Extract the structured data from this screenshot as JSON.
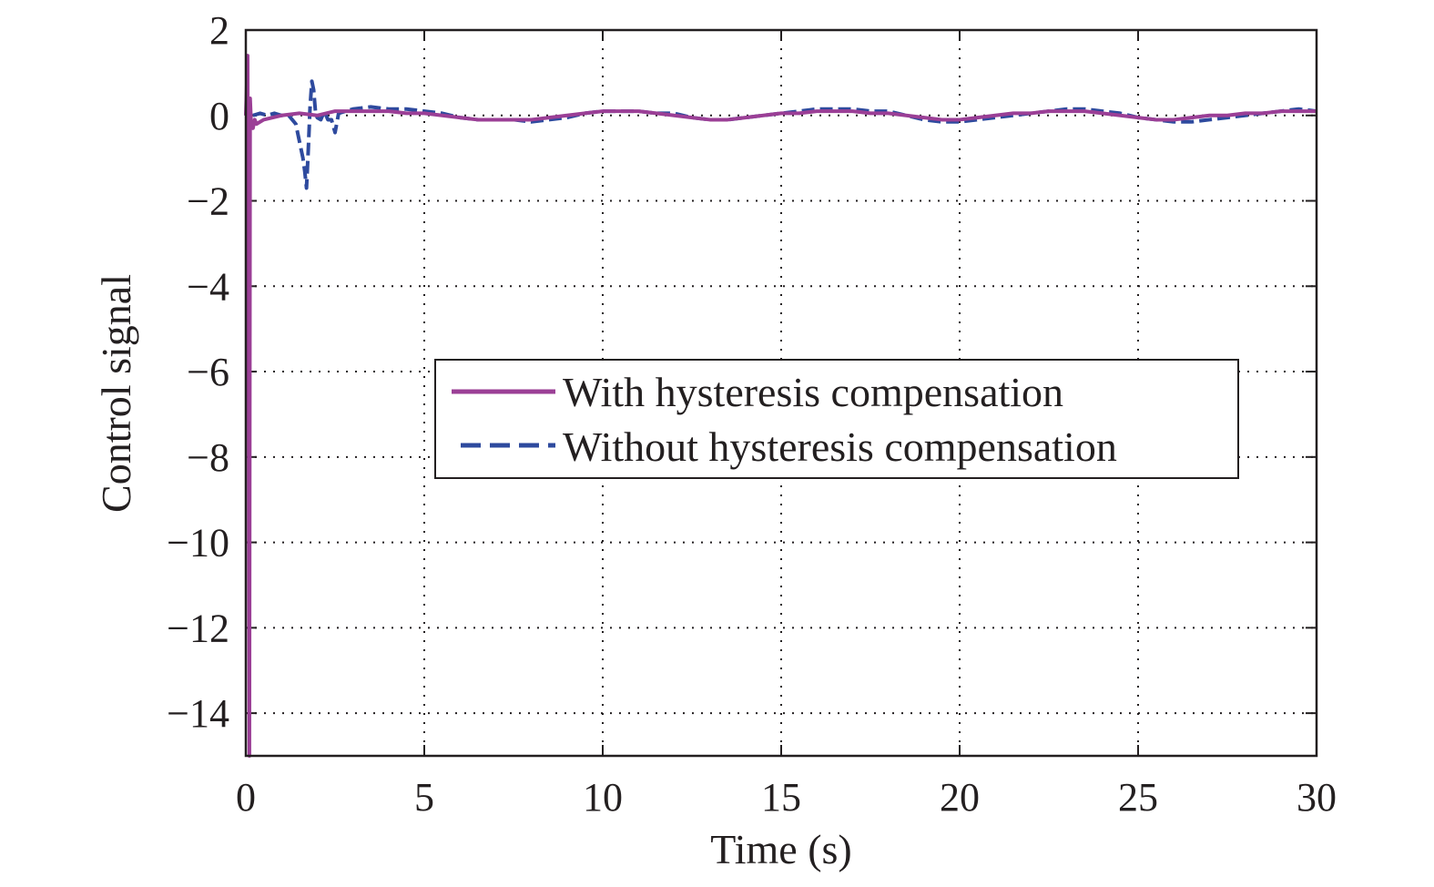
{
  "chart_data": {
    "type": "line",
    "title": "",
    "xlabel": "Time (s)",
    "ylabel": "Control signal",
    "xlim": [
      0,
      30
    ],
    "ylim": [
      -15,
      2
    ],
    "xticks": [
      0,
      5,
      10,
      15,
      20,
      25,
      30
    ],
    "xtick_labels": [
      "0",
      "5",
      "10",
      "15",
      "20",
      "25",
      "30"
    ],
    "yticks": [
      2,
      0,
      -2,
      -4,
      -6,
      -8,
      -10,
      -12,
      -14
    ],
    "ytick_labels": [
      "2",
      "0",
      "−2",
      "−4",
      "−6",
      "−8",
      "−10",
      "−12",
      "−14"
    ],
    "grid": true,
    "grid_style": "dotted",
    "legend_position": "center-right",
    "series": [
      {
        "name": "With hysteresis compensation",
        "color": "#9b3f96",
        "line_style": "solid",
        "x": [
          0,
          0.05,
          0.08,
          0.1,
          0.12,
          0.15,
          0.2,
          0.25,
          0.3,
          0.5,
          1.0,
          1.5,
          2.0,
          2.5,
          3.0,
          3.5,
          4.0,
          4.5,
          5.0,
          5.5,
          6.0,
          6.5,
          7.0,
          7.5,
          8.0,
          8.5,
          9.0,
          9.5,
          10.0,
          10.5,
          11.0,
          11.5,
          12.0,
          12.5,
          13.0,
          13.5,
          14.0,
          14.5,
          15.0,
          15.5,
          16.0,
          16.5,
          17.0,
          17.5,
          18.0,
          18.5,
          19.0,
          19.5,
          20.0,
          20.5,
          21.0,
          21.5,
          22.0,
          22.5,
          23.0,
          23.5,
          24.0,
          24.5,
          25.0,
          25.5,
          26.0,
          26.5,
          27.0,
          27.5,
          28.0,
          28.5,
          29.0,
          29.5,
          30.0
        ],
        "y": [
          0,
          1.4,
          -7.6,
          -15,
          0.4,
          -0.2,
          -0.3,
          -0.1,
          -0.2,
          -0.1,
          0.0,
          0.05,
          0.0,
          0.1,
          0.1,
          0.1,
          0.1,
          0.05,
          0.05,
          0.0,
          -0.05,
          -0.1,
          -0.1,
          -0.1,
          -0.1,
          -0.05,
          0.0,
          0.05,
          0.1,
          0.1,
          0.1,
          0.05,
          0.0,
          -0.05,
          -0.1,
          -0.1,
          -0.05,
          0.0,
          0.05,
          0.05,
          0.1,
          0.1,
          0.1,
          0.05,
          0.05,
          0.0,
          -0.05,
          -0.1,
          -0.1,
          -0.05,
          0.0,
          0.05,
          0.05,
          0.1,
          0.1,
          0.1,
          0.05,
          0.0,
          -0.05,
          -0.1,
          -0.1,
          -0.05,
          0.0,
          0.0,
          0.05,
          0.05,
          0.1,
          0.1,
          0.1
        ]
      },
      {
        "name": "Without hysteresis compensation",
        "color": "#2e4a9e",
        "line_style": "dashed",
        "x": [
          0.2,
          0.4,
          0.6,
          0.8,
          1.0,
          1.2,
          1.4,
          1.5,
          1.6,
          1.65,
          1.7,
          1.75,
          1.8,
          1.85,
          1.9,
          1.95,
          2.0,
          2.1,
          2.2,
          2.3,
          2.4,
          2.5,
          2.6,
          2.8,
          3.0,
          3.5,
          4.0,
          4.5,
          5.0,
          5.5,
          6.0,
          6.5,
          7.0,
          7.5,
          8.0,
          8.5,
          9.0,
          9.5,
          10.0,
          10.5,
          11.0,
          11.5,
          12.0,
          12.5,
          13.0,
          13.5,
          14.0,
          14.5,
          15.0,
          15.5,
          16.0,
          16.5,
          17.0,
          17.5,
          18.0,
          18.5,
          19.0,
          19.5,
          20.0,
          20.5,
          21.0,
          21.5,
          22.0,
          22.5,
          23.0,
          23.5,
          24.0,
          24.5,
          25.0,
          25.5,
          26.0,
          26.5,
          27.0,
          27.5,
          28.0,
          28.5,
          29.0,
          29.5,
          30.0
        ],
        "y": [
          0.0,
          0.05,
          0.0,
          0.05,
          0.0,
          0.0,
          -0.2,
          -0.6,
          -1.0,
          -1.3,
          -1.7,
          -0.8,
          0.2,
          0.8,
          0.6,
          0.1,
          -0.05,
          -0.1,
          0.1,
          -0.1,
          -0.1,
          -0.4,
          0.05,
          0.1,
          0.15,
          0.2,
          0.15,
          0.15,
          0.1,
          0.05,
          -0.05,
          -0.1,
          -0.1,
          -0.1,
          -0.15,
          -0.1,
          -0.05,
          0.05,
          0.1,
          0.1,
          0.1,
          0.05,
          0.05,
          -0.05,
          -0.1,
          -0.1,
          -0.05,
          0.0,
          0.05,
          0.1,
          0.15,
          0.15,
          0.15,
          0.1,
          0.1,
          0.0,
          -0.1,
          -0.15,
          -0.15,
          -0.1,
          -0.05,
          0.0,
          0.05,
          0.1,
          0.15,
          0.15,
          0.1,
          0.05,
          -0.05,
          -0.1,
          -0.15,
          -0.15,
          -0.1,
          -0.05,
          0.0,
          0.05,
          0.1,
          0.15,
          0.1
        ]
      }
    ]
  }
}
